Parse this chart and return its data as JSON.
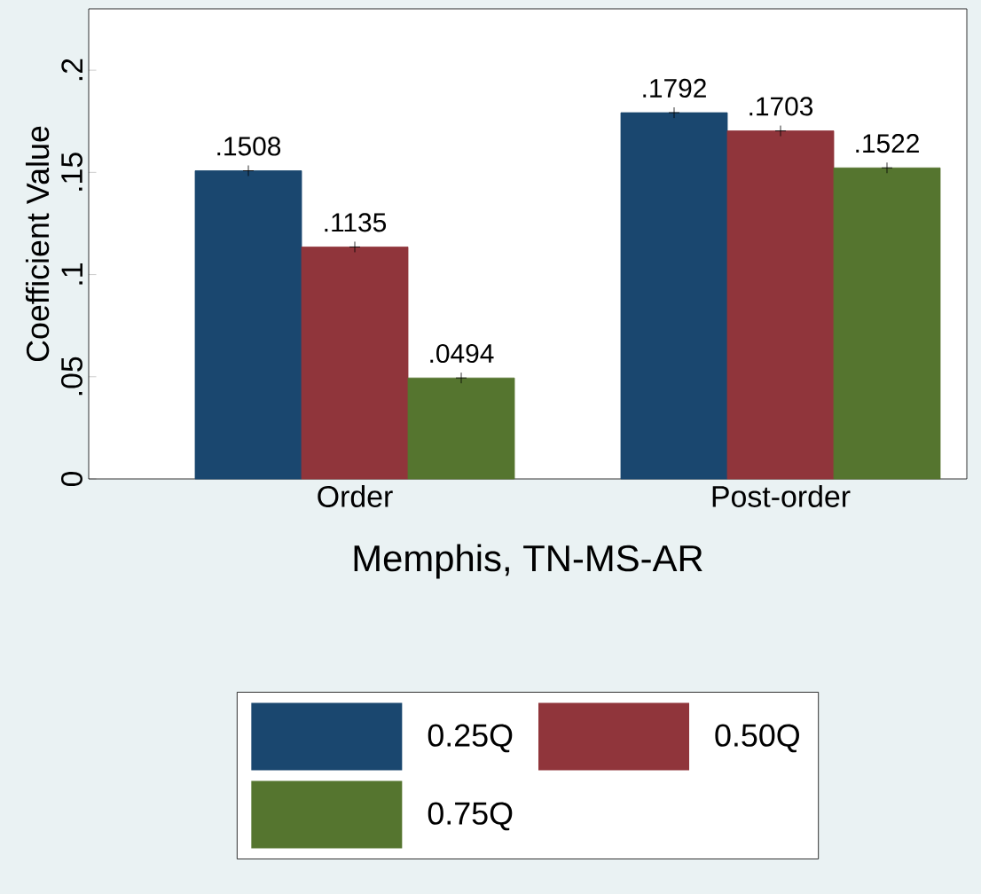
{
  "chart_data": {
    "type": "bar",
    "xlabel": "Memphis, TN-MS-AR",
    "ylabel": "Coefficient Value",
    "categories": [
      "Order",
      "Post-order"
    ],
    "series": [
      {
        "name": "0.25Q",
        "color": "#1a476f",
        "values": [
          0.1508,
          0.1792
        ],
        "value_labels": [
          ".1508",
          ".1792"
        ]
      },
      {
        "name": "0.50Q",
        "color": "#90353b",
        "values": [
          0.1135,
          0.1703
        ],
        "value_labels": [
          ".1135",
          ".1703"
        ]
      },
      {
        "name": "0.75Q",
        "color": "#55752f",
        "values": [
          0.0494,
          0.1522
        ],
        "value_labels": [
          ".0494",
          ".1522"
        ]
      }
    ],
    "ylim": [
      0,
      0.23
    ],
    "yticks": [
      0,
      {
        "value": 0.05,
        "label": ".05"
      },
      {
        "value": 0.1,
        "label": ".1"
      },
      {
        "value": 0.15,
        "label": ".15"
      },
      {
        "value": 0.2,
        "label": ".2"
      }
    ],
    "marker": "cross",
    "legend": "bottom",
    "grid": false
  }
}
